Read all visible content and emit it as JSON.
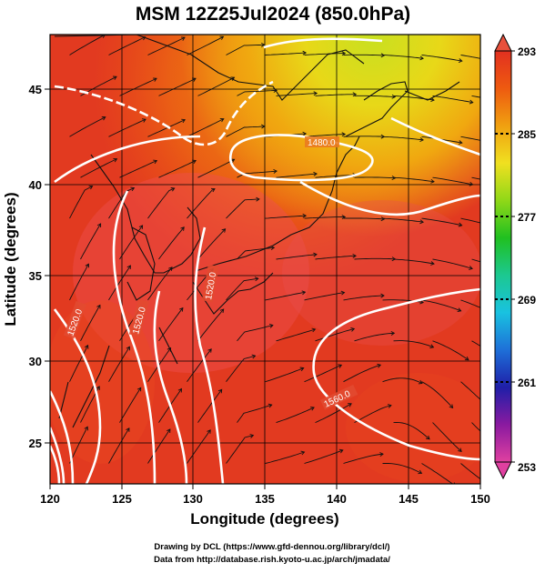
{
  "title": "MSM 12Z25Jul2024 (850.0hPa)",
  "xlabel": "Longitude (degrees)",
  "ylabel": "Latitude  (degrees)",
  "x_ticks": [
    "120",
    "125",
    "130",
    "135",
    "140",
    "145",
    "150"
  ],
  "y_ticks": [
    "25",
    "30",
    "35",
    "40",
    "45"
  ],
  "colorbar": {
    "ticks": [
      "293",
      "285",
      "277",
      "269",
      "261",
      "253"
    ],
    "range": [
      253,
      293
    ],
    "colors": [
      "#e040a0",
      "#8a1aa0",
      "#1f1fa8",
      "#1e6fd8",
      "#19c2e0",
      "#1cc890",
      "#20c020",
      "#90d818",
      "#f0e020",
      "#f0a010",
      "#ee5a10",
      "#e23020"
    ]
  },
  "contour_labels": [
    "1480.0",
    "1520.0",
    "1520.0",
    "1520.0",
    "1560.0"
  ],
  "credits": {
    "line1": "Drawing by DCL (https://www.gfd-dennou.org/library/dcl/)",
    "line2": "Data from http://database.rish.kyoto-u.ac.jp/arch/jmadata/"
  },
  "map": {
    "lon_range": [
      120,
      150
    ],
    "lat_range": [
      22.5,
      48
    ],
    "field": "temperature (K) with wind streamlines and geopotential height contours"
  }
}
